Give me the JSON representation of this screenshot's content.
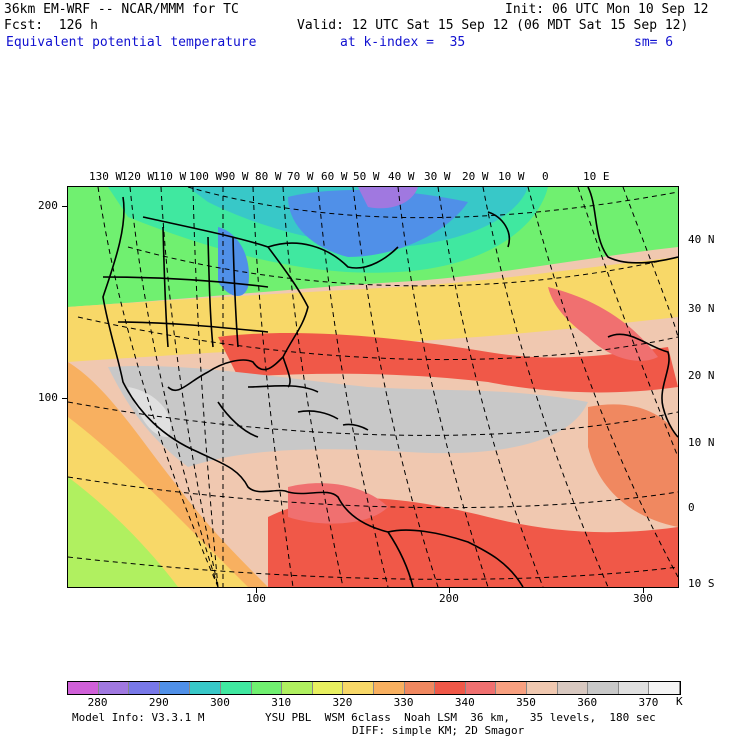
{
  "header": {
    "model_line": "36km EM-WRF -- NCAR/MMM for TC",
    "init_line": "Init: 06 UTC Mon 10 Sep 12",
    "fcst_line": "Fcst:  126 h",
    "valid_line": "Valid: 12 UTC Sat 15 Sep 12 (06 MDT Sat 15 Sep 12)",
    "field_name": "Equivalent potential temperature",
    "level_text": "at k-index =  35",
    "smooth_text": "sm= 6"
  },
  "map": {
    "longitude_labels": [
      "130 W",
      "120 W",
      "110 W",
      "100 W",
      "90 W",
      "80 W",
      "70 W",
      "60 W",
      "50 W",
      "40 W",
      "30 W",
      "20 W",
      "10 W",
      "0",
      "10 E"
    ],
    "latitude_labels": [
      "40 N",
      "30 N",
      "20 N",
      "10 N",
      "0",
      "10 S"
    ],
    "grid_x_labels": [
      "100",
      "200",
      "300"
    ],
    "grid_y_labels": [
      "200",
      "100"
    ]
  },
  "colorbar": {
    "unit": "K",
    "labels": [
      "280",
      "290",
      "300",
      "310",
      "320",
      "330",
      "340",
      "350",
      "360",
      "370"
    ],
    "colors": [
      "#d060d8",
      "#a078e0",
      "#7878e8",
      "#5090e8",
      "#38c8c8",
      "#40e8a0",
      "#70f070",
      "#b0f060",
      "#e8f060",
      "#f8d868",
      "#f8b060",
      "#f08860",
      "#f05848",
      "#f07070",
      "#f8a080",
      "#f0c8b0",
      "#d8c8c0",
      "#c8c8c8",
      "#e0e0e0",
      "#f4f4f4"
    ]
  },
  "footer": {
    "model_info": "Model Info: V3.3.1 M",
    "physics": "YSU PBL  WSM 6class  Noah LSM  36 km,   35 levels,  180 sec",
    "diffusion": "DIFF: simple KM; 2D Smagor"
  }
}
